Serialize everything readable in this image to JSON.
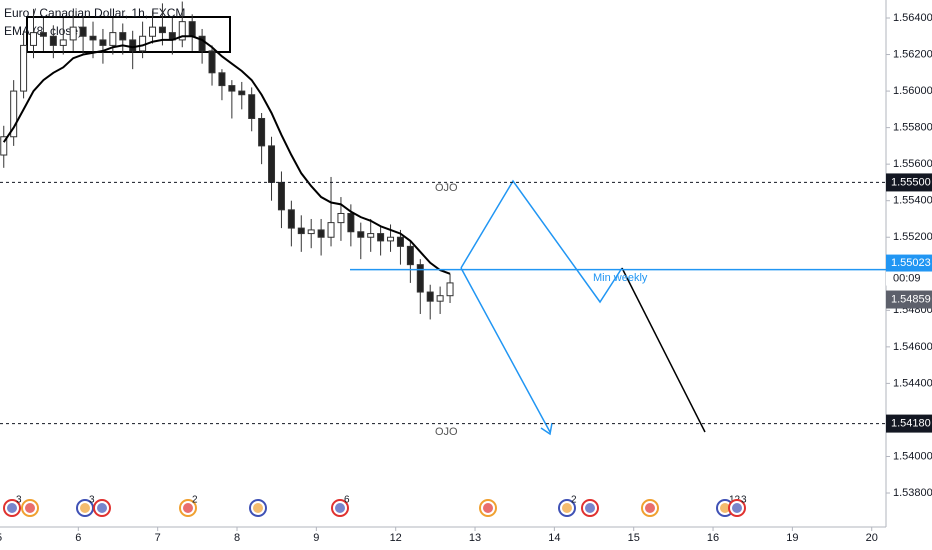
{
  "chart_data": {
    "type": "candlestick",
    "title": "Euro / Canadian Dollar, 1h, FXCM",
    "x": [
      0.06,
      0.185,
      0.31,
      0.435,
      0.56,
      0.685,
      0.81,
      0.935,
      1.06,
      1.185,
      1.31,
      1.435,
      1.56,
      1.685,
      1.81,
      1.935,
      2.06,
      2.185,
      2.31,
      2.435,
      2.56,
      2.685,
      2.81,
      2.935,
      3.06,
      3.185,
      3.31,
      3.435,
      3.56,
      3.685,
      3.81,
      3.935,
      4.06,
      4.185,
      4.31,
      4.435,
      4.56,
      4.685,
      4.81,
      4.935,
      5.06,
      5.185,
      5.31,
      5.435,
      5.56,
      5.685
    ],
    "open": [
      1.5565,
      1.5575,
      1.56,
      1.5625,
      1.5632,
      1.563,
      1.5625,
      1.5628,
      1.5635,
      1.563,
      1.5628,
      1.5625,
      1.5632,
      1.5628,
      1.5622,
      1.563,
      1.5635,
      1.5632,
      1.5628,
      1.5638,
      1.563,
      1.5622,
      1.561,
      1.5603,
      1.56,
      1.5598,
      1.5585,
      1.557,
      1.555,
      1.5535,
      1.5525,
      1.5522,
      1.5524,
      1.552,
      1.5528,
      1.5533,
      1.5523,
      1.552,
      1.5522,
      1.5518,
      1.552,
      1.5515,
      1.5505,
      1.549,
      1.5485,
      1.5488
    ],
    "high": [
      1.5581,
      1.5606,
      1.5633,
      1.5645,
      1.564,
      1.5636,
      1.564,
      1.5643,
      1.5641,
      1.5638,
      1.5634,
      1.564,
      1.5637,
      1.5633,
      1.5638,
      1.5644,
      1.5648,
      1.564,
      1.5649,
      1.5642,
      1.5634,
      1.5625,
      1.5612,
      1.5606,
      1.5605,
      1.5602,
      1.5588,
      1.5575,
      1.5556,
      1.554,
      1.5532,
      1.553,
      1.553,
      1.5553,
      1.5542,
      1.5538,
      1.5528,
      1.553,
      1.5526,
      1.5527,
      1.5524,
      1.5518,
      1.5508,
      1.5494,
      1.5493,
      1.55
    ],
    "low": [
      1.5558,
      1.557,
      1.5596,
      1.5618,
      1.5622,
      1.5618,
      1.562,
      1.5622,
      1.562,
      1.5618,
      1.5615,
      1.562,
      1.562,
      1.5612,
      1.5618,
      1.5626,
      1.5625,
      1.562,
      1.5624,
      1.5622,
      1.5615,
      1.5603,
      1.5595,
      1.5585,
      1.559,
      1.5578,
      1.556,
      1.554,
      1.5525,
      1.5515,
      1.5512,
      1.5514,
      1.551,
      1.5515,
      1.5518,
      1.5515,
      1.5508,
      1.5512,
      1.551,
      1.5512,
      1.5505,
      1.5495,
      1.5478,
      1.5475,
      1.5478,
      1.5484
    ],
    "close": [
      1.5575,
      1.56,
      1.5625,
      1.5632,
      1.563,
      1.5625,
      1.5628,
      1.5635,
      1.563,
      1.5628,
      1.5625,
      1.5632,
      1.5628,
      1.5622,
      1.563,
      1.5635,
      1.5632,
      1.5628,
      1.5638,
      1.563,
      1.5622,
      1.561,
      1.5603,
      1.56,
      1.5598,
      1.5585,
      1.557,
      1.555,
      1.5535,
      1.5525,
      1.5522,
      1.5524,
      1.552,
      1.5528,
      1.5533,
      1.5523,
      1.552,
      1.5522,
      1.5518,
      1.552,
      1.5515,
      1.5505,
      1.549,
      1.5485,
      1.5488,
      1.5495
    ],
    "series": [
      {
        "name": "EMA (8, close)",
        "color": "#000000",
        "values": [
          1.5572,
          1.558,
          1.559,
          1.56,
          1.5606,
          1.561,
          1.5613,
          1.5618,
          1.562,
          1.5621,
          1.5622,
          1.5624,
          1.5625,
          1.5624,
          1.5625,
          1.5627,
          1.5628,
          1.5628,
          1.563,
          1.563,
          1.5628,
          1.5624,
          1.5619,
          1.5615,
          1.5611,
          1.5606,
          1.5598,
          1.5588,
          1.5576,
          1.5565,
          1.5555,
          1.5548,
          1.5542,
          1.5539,
          1.5538,
          1.5534,
          1.5531,
          1.5529,
          1.5526,
          1.5524,
          1.5522,
          1.5518,
          1.5512,
          1.5506,
          1.5502,
          1.55
        ]
      }
    ],
    "xlim": [
      0.0126,
      11.18
    ],
    "xticks": [
      {
        "value": 0,
        "label": "5"
      },
      {
        "value": 1,
        "label": "6"
      },
      {
        "value": 2,
        "label": "7"
      },
      {
        "value": 3,
        "label": "8"
      },
      {
        "value": 4,
        "label": "9"
      },
      {
        "value": 5,
        "label": "12"
      },
      {
        "value": 6,
        "label": "13"
      },
      {
        "value": 7,
        "label": "14"
      },
      {
        "value": 8,
        "label": "15"
      },
      {
        "value": 9,
        "label": "16"
      },
      {
        "value": 10,
        "label": "19"
      },
      {
        "value": 11,
        "label": "20"
      }
    ],
    "ylim": [
      1.53614,
      1.564985
    ],
    "yticks": [
      {
        "value": 1.564,
        "label": "1.56400"
      },
      {
        "value": 1.562,
        "label": "1.56200"
      },
      {
        "value": 1.56,
        "label": "1.56000"
      },
      {
        "value": 1.558,
        "label": "1.55800"
      },
      {
        "value": 1.556,
        "label": "1.55600"
      },
      {
        "value": 1.554,
        "label": "1.55400"
      },
      {
        "value": 1.552,
        "label": "1.55200"
      },
      {
        "value": 1.548,
        "label": "1.54800"
      },
      {
        "value": 1.546,
        "label": "1.54600"
      },
      {
        "value": 1.544,
        "label": "1.54400"
      },
      {
        "value": 1.54,
        "label": "1.54000"
      },
      {
        "value": 1.538,
        "label": "1.53800"
      }
    ],
    "levels": [
      {
        "value": 1.555,
        "label": "1.55500",
        "color": "#131722"
      },
      {
        "value": 1.5418,
        "label": "1.54180",
        "color": "#131722"
      }
    ],
    "blue_level": {
      "value": 1.55023,
      "label": "1.55023",
      "color": "#2196f3"
    },
    "last_price": {
      "value": 1.54859,
      "label": "1.54859",
      "color": "#5d606b"
    },
    "countdown": "00:09",
    "annotations": [
      "OJO",
      "OJO",
      "Min weekly"
    ],
    "events": [
      "3",
      "3",
      "2",
      "6",
      "2",
      "12",
      "3"
    ]
  }
}
